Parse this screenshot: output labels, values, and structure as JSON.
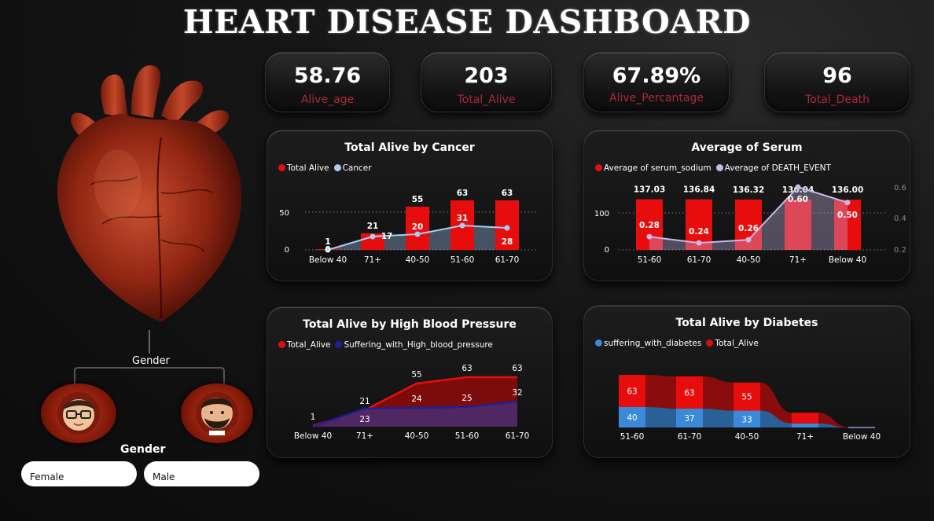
{
  "title": "HEART DISEASE DASHBOARD",
  "colors": {
    "red": "#e80d0d",
    "darkred": "#8e0a0a",
    "lightblue": "#a9ccf5",
    "navy": "#1e1f9a",
    "label": "#b0283a",
    "lavender": "#c9b8e8"
  },
  "kpis": [
    {
      "value": "58.76",
      "label": "Alive_age"
    },
    {
      "value": "203",
      "label": "Total_Alive"
    },
    {
      "value": "67.89%",
      "label": "Alive_Percantage"
    },
    {
      "value": "96",
      "label": "Total_Death"
    }
  ],
  "gender": {
    "hierarchy_label": "Gender",
    "slicer_title": "Gender",
    "options": [
      "Female",
      "Male"
    ]
  },
  "chart_data": [
    {
      "id": "cancer",
      "type": "bar",
      "title": "Total Alive by Cancer",
      "legend": [
        "Total Alive",
        "Cancer"
      ],
      "categories": [
        "Below 40",
        "71+",
        "40-50",
        "51-60",
        "61-70"
      ],
      "series": [
        {
          "name": "Total Alive",
          "values": [
            1,
            21,
            55,
            63,
            63
          ]
        },
        {
          "name": "Cancer",
          "values": [
            0,
            17,
            20,
            31,
            28
          ]
        }
      ],
      "y_ticks": [
        "0",
        "50"
      ],
      "ylim": [
        0,
        70
      ]
    },
    {
      "id": "serum",
      "type": "bar",
      "title": "Average of Serum",
      "legend": [
        "Average of serum_sodium",
        "Average of DEATH_EVENT"
      ],
      "categories": [
        "51-60",
        "61-70",
        "40-50",
        "71+",
        "Below 40"
      ],
      "series": [
        {
          "name": "Average of serum_sodium",
          "values": [
            137.03,
            136.84,
            136.32,
            136.04,
            136.0
          ]
        },
        {
          "name": "Average of DEATH_EVENT",
          "values": [
            0.28,
            0.24,
            0.26,
            0.6,
            0.5
          ]
        }
      ],
      "y_ticks": [
        "0",
        "100"
      ],
      "y2_ticks": [
        "0.2",
        "0.4",
        "0.6"
      ],
      "ylim": [
        0,
        160
      ],
      "y2lim": [
        0.2,
        0.6
      ]
    },
    {
      "id": "bp",
      "type": "area",
      "title": "Total Alive by High Blood Pressure",
      "legend": [
        "Total_Alive",
        "Suffering_with_High_blood_pressure"
      ],
      "categories": [
        "Below 40",
        "71+",
        "40-50",
        "51-60",
        "61-70"
      ],
      "series": [
        {
          "name": "Total_Alive",
          "values": [
            1,
            21,
            55,
            63,
            63
          ]
        },
        {
          "name": "Suffering_with_High_blood_pressure",
          "values": [
            0,
            23,
            24,
            25,
            32
          ]
        }
      ],
      "ylim": [
        0,
        70
      ]
    },
    {
      "id": "diabetes",
      "type": "bar",
      "title": "Total Alive by Diabetes",
      "legend": [
        "suffering_with_diabetes",
        "Total_Alive"
      ],
      "categories": [
        "51-60",
        "61-70",
        "40-50",
        "71+",
        "Below 40"
      ],
      "series": [
        {
          "name": "suffering_with_diabetes",
          "values": [
            40,
            37,
            33,
            8,
            0
          ]
        },
        {
          "name": "Total_Alive",
          "values": [
            63,
            63,
            55,
            21,
            1
          ]
        }
      ],
      "ylim": [
        0,
        110
      ]
    }
  ]
}
